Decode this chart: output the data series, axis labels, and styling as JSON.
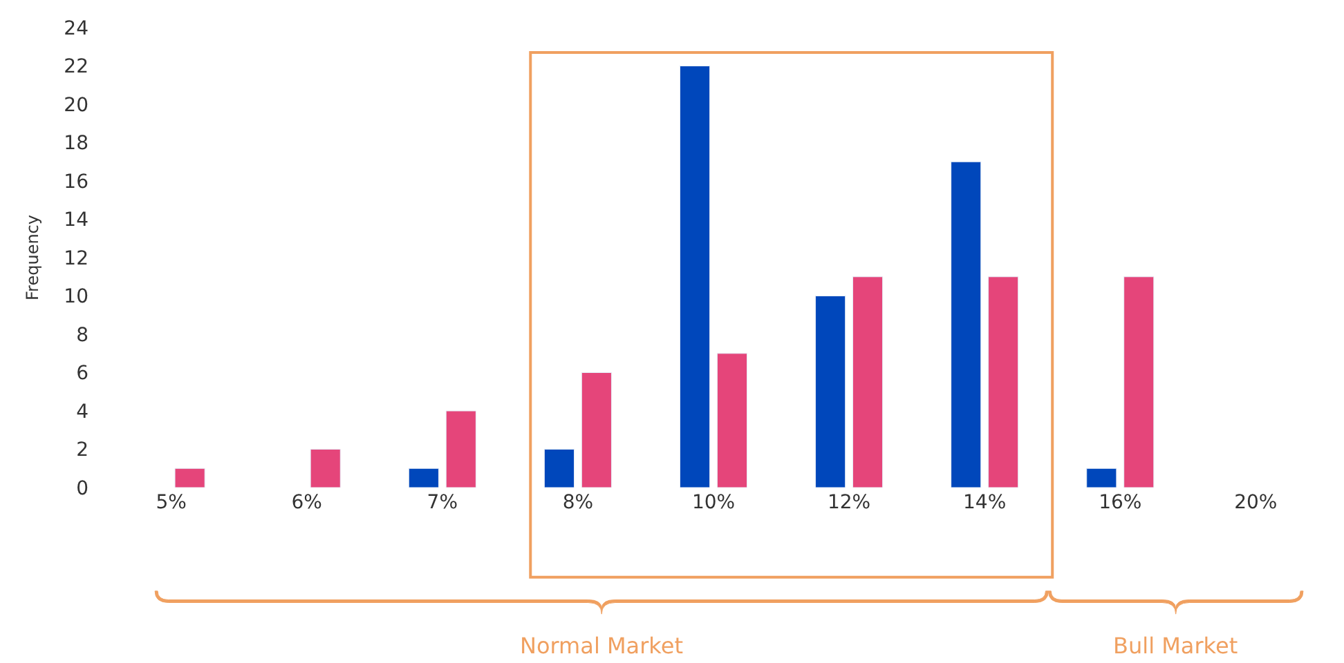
{
  "chart_data": {
    "type": "bar",
    "ylabel": "Frequency",
    "categories": [
      "5%",
      "6%",
      "7%",
      "8%",
      "10%",
      "12%",
      "14%",
      "16%",
      "20%"
    ],
    "series": [
      {
        "color": "#0047bb",
        "values": [
          null,
          null,
          1,
          2,
          22,
          10,
          17,
          1,
          null
        ]
      },
      {
        "color": "#e5457a",
        "values": [
          1,
          2,
          4,
          6,
          7,
          11,
          11,
          11,
          null
        ]
      }
    ],
    "ylim": [
      0,
      24
    ],
    "yticks": [
      0,
      2,
      4,
      6,
      8,
      10,
      12,
      14,
      16,
      18,
      20,
      22,
      24
    ],
    "legend": false,
    "annotations": [
      "Normal Market",
      "Bull Market"
    ]
  }
}
